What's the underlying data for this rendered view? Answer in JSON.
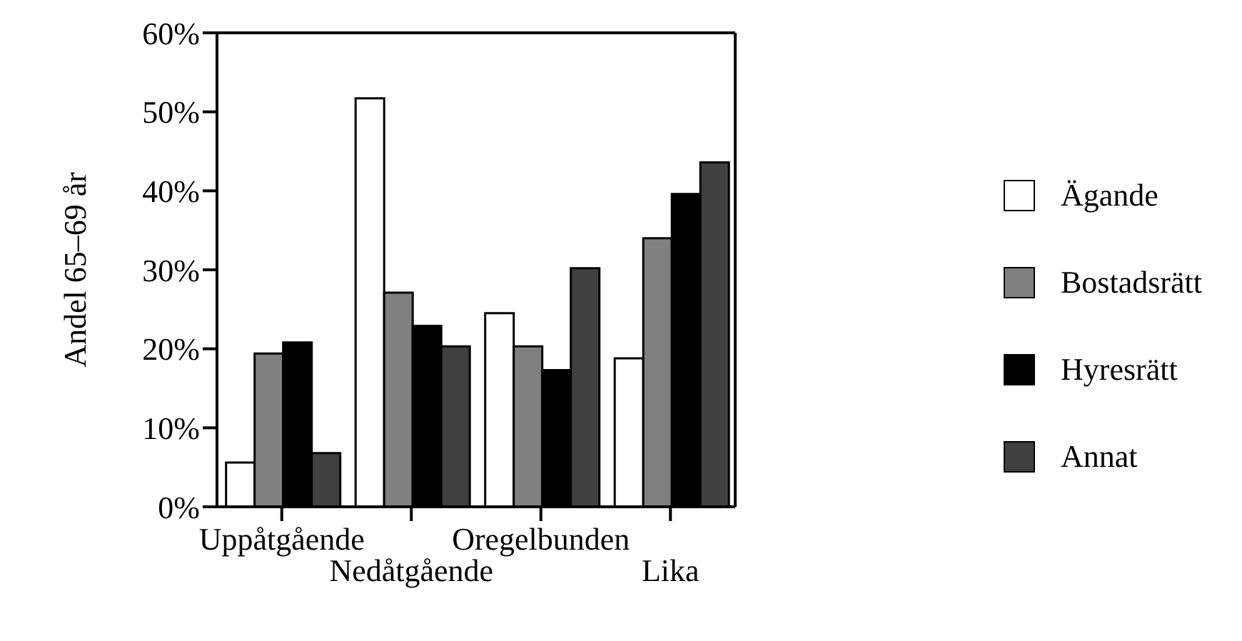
{
  "chart_data": {
    "type": "bar",
    "ylabel": "Andel 65–69 år",
    "categories": [
      "Uppåtgående",
      "Nedåtgående",
      "Oregelbunden",
      "Lika"
    ],
    "series": [
      {
        "name": "Ägande",
        "color": "#ffffff",
        "values": [
          5.6,
          51.7,
          24.5,
          18.8
        ]
      },
      {
        "name": "Bostadsrätt",
        "color": "#808080",
        "values": [
          19.4,
          27.1,
          20.3,
          34
        ]
      },
      {
        "name": "Hyresrätt",
        "color": "#000000",
        "values": [
          20.8,
          22.9,
          17.3,
          39.6
        ]
      },
      {
        "name": "Annat",
        "color": "#404040",
        "values": [
          6.8,
          20.3,
          30.2,
          43.6
        ]
      }
    ],
    "ylim": [
      0,
      60
    ],
    "yticks": [
      {
        "value": 0,
        "label": "0%"
      },
      {
        "value": 10,
        "label": "10%"
      },
      {
        "value": 20,
        "label": "20%"
      },
      {
        "value": 30,
        "label": "30%"
      },
      {
        "value": 40,
        "label": "40%"
      },
      {
        "value": 50,
        "label": "50%"
      },
      {
        "value": 60,
        "label": "60%"
      }
    ],
    "grid": false,
    "legend": "right"
  }
}
